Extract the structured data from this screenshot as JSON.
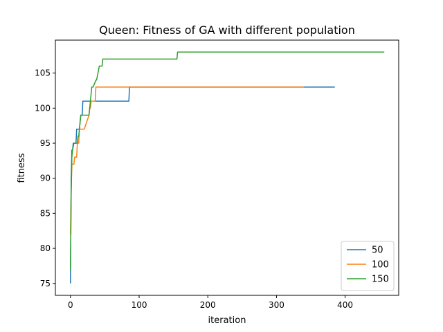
{
  "chart_data": {
    "type": "line",
    "title": "Queen: Fitness of GA with different population",
    "xlabel": "iteration",
    "ylabel": "fitness",
    "xlim": [
      -22,
      478
    ],
    "ylim": [
      73.3,
      109.7
    ],
    "xticks": [
      0,
      100,
      200,
      300,
      400
    ],
    "yticks": [
      75,
      80,
      85,
      90,
      95,
      100,
      105
    ],
    "grid": false,
    "legend_position": "lower-right",
    "series": [
      {
        "name": "50",
        "color": "#1f77b4",
        "x": [
          0,
          1,
          2,
          3,
          4,
          5,
          6,
          8,
          9,
          10,
          12,
          13,
          14,
          15,
          16,
          17,
          18,
          85,
          86,
          385
        ],
        "y": [
          75,
          90,
          94,
          94,
          95,
          95,
          95,
          95,
          97,
          97,
          97,
          97,
          98,
          99,
          99,
          99,
          101,
          101,
          103,
          103
        ]
      },
      {
        "name": "100",
        "color": "#ff7f0e",
        "x": [
          0,
          1,
          2,
          3,
          4,
          5,
          6,
          8,
          9,
          10,
          11,
          12,
          13,
          15,
          16,
          19,
          20,
          27,
          28,
          29,
          30,
          31,
          36,
          37,
          340
        ],
        "y": [
          82,
          88,
          92,
          92,
          92,
          92,
          93,
          93,
          93,
          95,
          95,
          95,
          97,
          97,
          97,
          97,
          97,
          99,
          100,
          100,
          101,
          101,
          101,
          103,
          103
        ]
      },
      {
        "name": "150",
        "color": "#2ca02c",
        "x": [
          0,
          1,
          2,
          3,
          5,
          8,
          10,
          11,
          12,
          13,
          14,
          15,
          16,
          27,
          28,
          29,
          30,
          31,
          33,
          37,
          38,
          42,
          43,
          46,
          47,
          155,
          156,
          457
        ],
        "y": [
          77,
          88,
          93,
          94,
          95,
          95,
          95,
          96,
          96,
          97,
          98,
          99,
          99,
          99,
          100,
          101,
          102,
          103,
          103,
          104,
          104,
          106,
          106,
          106,
          107,
          107,
          108,
          108
        ]
      }
    ]
  }
}
